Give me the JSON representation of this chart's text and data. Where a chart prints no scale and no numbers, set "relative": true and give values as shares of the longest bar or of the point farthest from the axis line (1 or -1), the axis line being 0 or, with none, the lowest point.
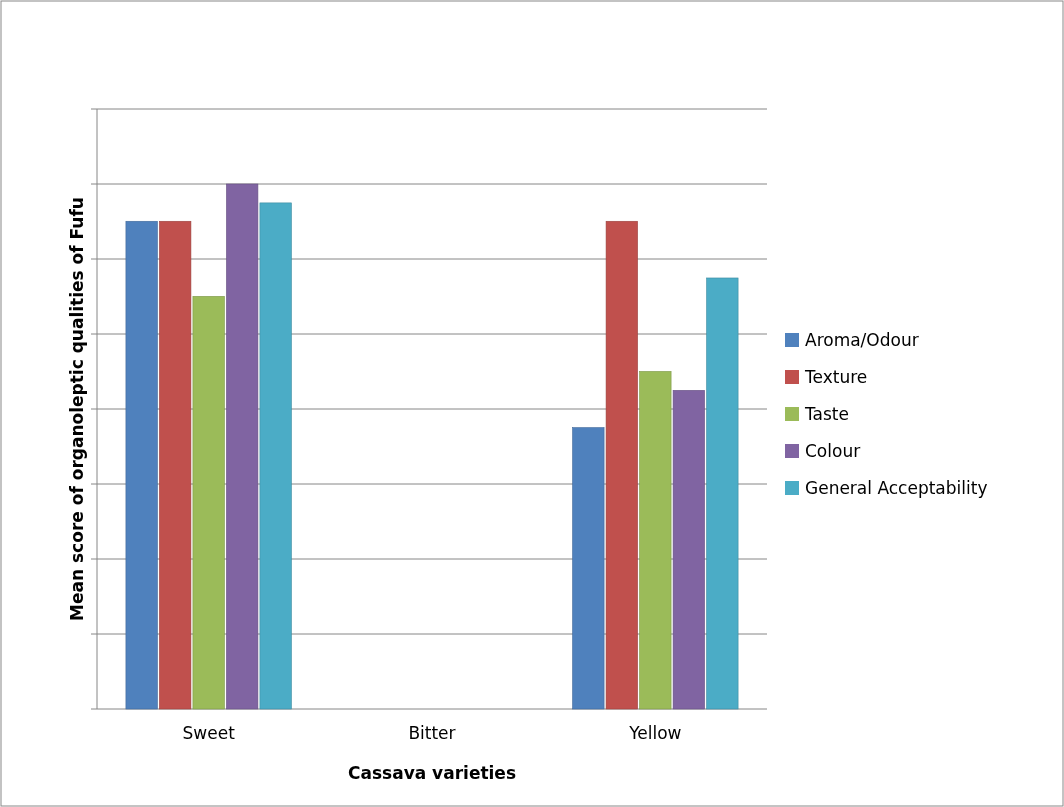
{
  "chart_data": {
    "type": "bar",
    "relative": true,
    "xlabel": "Cassava varieties",
    "ylabel": "Mean score of organoleptic qualities of Fufu",
    "categories": [
      "Sweet",
      "Bitter",
      "Yellow"
    ],
    "series": [
      {
        "name": "Aroma/Odour",
        "color": "#4f81bd",
        "values": [
          0.929,
          null,
          0.536
        ]
      },
      {
        "name": "Texture",
        "color": "#c0504d",
        "values": [
          0.929,
          null,
          0.929
        ]
      },
      {
        "name": "Taste",
        "color": "#9bbb59",
        "values": [
          0.786,
          null,
          0.643
        ]
      },
      {
        "name": "Colour",
        "color": "#8064a2",
        "values": [
          1,
          null,
          0.607
        ]
      },
      {
        "name": "General Acceptability",
        "color": "#4bacc6",
        "values": [
          0.964,
          null,
          0.821
        ]
      }
    ],
    "grid": true,
    "legend": "right"
  }
}
